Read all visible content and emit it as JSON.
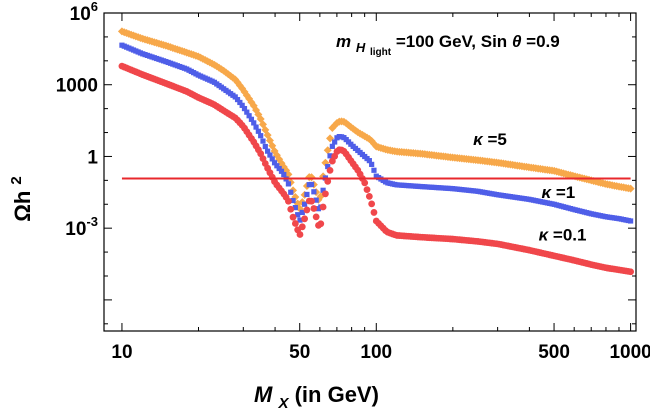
{
  "chart_data": {
    "type": "scatter",
    "x_scale": "log",
    "y_scale": "log",
    "xlim": [
      8.5,
      1050
    ],
    "ylim": [
      5e-08,
      1000000
    ],
    "xlabel": "M",
    "xlabel_sub": "X",
    "xlabel_suffix": " (in GeV)",
    "ylabel": "Ωh",
    "ylabel_sup": "2",
    "x_ticks": [
      {
        "value": 10,
        "label": "10"
      },
      {
        "value": 50,
        "label": "50"
      },
      {
        "value": 100,
        "label": "100"
      },
      {
        "value": 500,
        "label": "500"
      },
      {
        "value": 1000,
        "label": "1000"
      }
    ],
    "y_ticks": [
      {
        "value": 1000000,
        "base": "10",
        "exp": "6"
      },
      {
        "value": 1000,
        "base": "1000",
        "exp": ""
      },
      {
        "value": 1,
        "base": "1",
        "exp": ""
      },
      {
        "value": 0.001,
        "base": "10",
        "exp": "-3"
      }
    ],
    "annotation": {
      "symbol": "m",
      "sub": "H",
      "subsub": "light",
      "text": "=100 GeV, Sin",
      "theta": "θ",
      "text2": "=0.9"
    },
    "reference_line": {
      "y": 0.12,
      "color": "#e8282c"
    },
    "series": [
      {
        "name": "κ=5",
        "color": "#f7a84a",
        "marker": "diamond",
        "points": [
          [
            10,
            170000
          ],
          [
            12,
            85000
          ],
          [
            15,
            42000
          ],
          [
            18,
            22000
          ],
          [
            20,
            15000
          ],
          [
            23,
            7000
          ],
          [
            25,
            4000
          ],
          [
            28,
            1600
          ],
          [
            30,
            600
          ],
          [
            33,
            130
          ],
          [
            35,
            40
          ],
          [
            37,
            10
          ],
          [
            40,
            1.5
          ],
          [
            43,
            0.4
          ],
          [
            45,
            0.2
          ],
          [
            47,
            0.04
          ],
          [
            50,
            0.006
          ],
          [
            52,
            0.02
          ],
          [
            55,
            0.2
          ],
          [
            57,
            0.06
          ],
          [
            60,
            0.01
          ],
          [
            62,
            0.2
          ],
          [
            65,
            3
          ],
          [
            67,
            15
          ],
          [
            70,
            25
          ],
          [
            72,
            30
          ],
          [
            75,
            28
          ],
          [
            80,
            16
          ],
          [
            85,
            10
          ],
          [
            90,
            7
          ],
          [
            95,
            5
          ],
          [
            100,
            2.6
          ],
          [
            110,
            1.9
          ],
          [
            120,
            1.6
          ],
          [
            150,
            1.3
          ],
          [
            200,
            0.9
          ],
          [
            250,
            0.7
          ],
          [
            300,
            0.55
          ],
          [
            400,
            0.35
          ],
          [
            500,
            0.25
          ],
          [
            600,
            0.15
          ],
          [
            700,
            0.1
          ],
          [
            800,
            0.07
          ],
          [
            900,
            0.055
          ],
          [
            1000,
            0.045
          ]
        ]
      },
      {
        "name": "κ=1",
        "color": "#4f5ee8",
        "marker": "square",
        "points": [
          [
            10,
            45000
          ],
          [
            12,
            20000
          ],
          [
            15,
            9000
          ],
          [
            18,
            4500
          ],
          [
            20,
            2500
          ],
          [
            23,
            1300
          ],
          [
            25,
            700
          ],
          [
            28,
            300
          ],
          [
            30,
            120
          ],
          [
            33,
            25
          ],
          [
            35,
            8
          ],
          [
            37,
            2
          ],
          [
            40,
            0.5
          ],
          [
            43,
            0.2
          ],
          [
            45,
            0.08
          ],
          [
            47,
            0.015
          ],
          [
            50,
            0.002
          ],
          [
            52,
            0.008
          ],
          [
            55,
            0.1
          ],
          [
            57,
            0.03
          ],
          [
            60,
            0.004
          ],
          [
            62,
            0.05
          ],
          [
            65,
            0.6
          ],
          [
            67,
            2.5
          ],
          [
            70,
            6
          ],
          [
            72,
            7
          ],
          [
            75,
            6
          ],
          [
            80,
            3
          ],
          [
            85,
            1.7
          ],
          [
            90,
            1
          ],
          [
            95,
            0.6
          ],
          [
            100,
            0.15
          ],
          [
            110,
            0.08
          ],
          [
            120,
            0.065
          ],
          [
            150,
            0.055
          ],
          [
            200,
            0.045
          ],
          [
            250,
            0.035
          ],
          [
            300,
            0.025
          ],
          [
            400,
            0.016
          ],
          [
            500,
            0.01
          ],
          [
            600,
            0.006
          ],
          [
            700,
            0.004
          ],
          [
            800,
            0.003
          ],
          [
            900,
            0.0025
          ],
          [
            1000,
            0.002
          ]
        ]
      },
      {
        "name": "κ=0.1",
        "color": "#f0474b",
        "marker": "circle",
        "points": [
          [
            10,
            6000
          ],
          [
            12,
            2700
          ],
          [
            15,
            1100
          ],
          [
            18,
            520
          ],
          [
            20,
            290
          ],
          [
            23,
            150
          ],
          [
            25,
            85
          ],
          [
            28,
            40
          ],
          [
            30,
            18
          ],
          [
            33,
            4
          ],
          [
            35,
            1.4
          ],
          [
            37,
            0.4
          ],
          [
            40,
            0.08
          ],
          [
            43,
            0.03
          ],
          [
            45,
            0.015
          ],
          [
            47,
            0.003
          ],
          [
            50,
            0.0005
          ],
          [
            52,
            0.002
          ],
          [
            55,
            0.02
          ],
          [
            57,
            0.006
          ],
          [
            60,
            0.0008
          ],
          [
            62,
            0.01
          ],
          [
            65,
            0.15
          ],
          [
            67,
            0.6
          ],
          [
            70,
            1.6
          ],
          [
            72,
            2
          ],
          [
            75,
            1.6
          ],
          [
            80,
            0.6
          ],
          [
            85,
            0.25
          ],
          [
            90,
            0.08
          ],
          [
            95,
            0.015
          ],
          [
            100,
            0.002
          ],
          [
            110,
            0.0007
          ],
          [
            120,
            0.0005
          ],
          [
            150,
            0.00042
          ],
          [
            200,
            0.00035
          ],
          [
            250,
            0.00028
          ],
          [
            300,
            0.00022
          ],
          [
            400,
            0.00012
          ],
          [
            500,
            7e-05
          ],
          [
            600,
            4.5e-05
          ],
          [
            700,
            3e-05
          ],
          [
            800,
            2.2e-05
          ],
          [
            900,
            1.8e-05
          ],
          [
            1000,
            1.5e-05
          ]
        ]
      }
    ],
    "labels": [
      {
        "series": 0,
        "base": "κ",
        "value": " =5",
        "x": 280,
        "y": 3
      },
      {
        "series": 1,
        "base": "κ",
        "value": " =1",
        "x": 520,
        "y": 0.018
      },
      {
        "series": 2,
        "base": "κ",
        "value": " =0.1",
        "x": 540,
        "y": 0.0003
      }
    ]
  }
}
